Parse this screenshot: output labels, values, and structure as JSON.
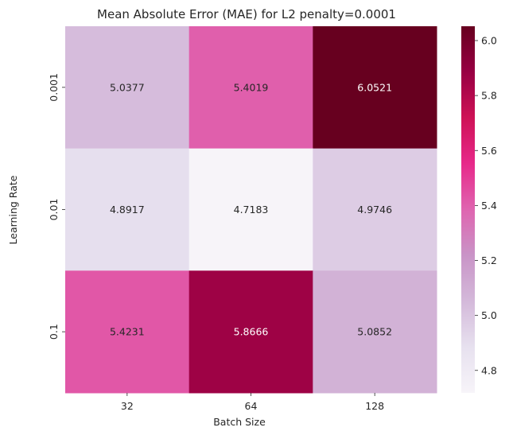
{
  "chart_data": {
    "type": "heatmap",
    "title": "Mean Absolute Error (MAE) for L2 penalty=0.0001",
    "xlabel": "Batch Size",
    "ylabel": "Learning Rate",
    "x_categories": [
      "32",
      "64",
      "128"
    ],
    "y_categories": [
      "0.001",
      "0.01",
      "0.1"
    ],
    "values": [
      [
        5.0377,
        5.4019,
        6.0521
      ],
      [
        4.8917,
        4.7183,
        4.9746
      ],
      [
        5.4231,
        5.8666,
        5.0852
      ]
    ],
    "value_labels": [
      [
        "5.0377",
        "5.4019",
        "6.0521"
      ],
      [
        "4.8917",
        "4.7183",
        "4.9746"
      ],
      [
        "5.4231",
        "5.8666",
        "5.0852"
      ]
    ],
    "colorbar": {
      "min": 4.7183,
      "max": 6.0521,
      "ticks": [
        4.8,
        5.0,
        5.2,
        5.4,
        5.6,
        5.8,
        6.0
      ],
      "tick_labels": [
        "4.8",
        "5.0",
        "5.2",
        "5.4",
        "5.6",
        "5.8",
        "6.0"
      ]
    },
    "colormap": "PuRd",
    "colormap_stops": [
      "#f7f4f9",
      "#e7e1ef",
      "#d4b9da",
      "#c994c7",
      "#df65b0",
      "#e7298a",
      "#ce1256",
      "#980043",
      "#67001f"
    ],
    "text_colors": {
      "light": "#ffffff",
      "dark": "#262626"
    }
  }
}
